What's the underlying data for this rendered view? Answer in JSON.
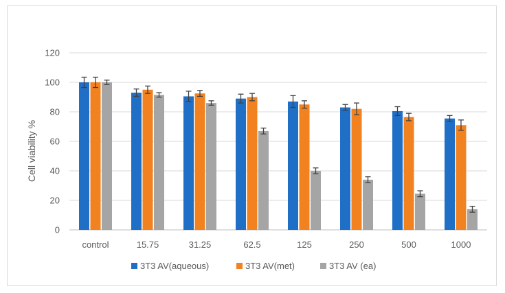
{
  "chart_data": {
    "type": "bar",
    "title": "",
    "xlabel": "",
    "ylabel": "Cell viability %",
    "ylim": [
      0,
      120
    ],
    "yticks": [
      0,
      20,
      40,
      60,
      80,
      100,
      120
    ],
    "grid": true,
    "legend_position": "bottom",
    "categories": [
      "control",
      "15.75",
      "31.25",
      "62.5",
      "125",
      "250",
      "500",
      "1000"
    ],
    "series": [
      {
        "name": "3T3 AV(aqueous)",
        "color": "#1f6fc6",
        "values": [
          100,
          93,
          90.5,
          89,
          87,
          83,
          80.5,
          75.5
        ],
        "errors": [
          3.5,
          2.5,
          3.5,
          3,
          4,
          2,
          3,
          2
        ]
      },
      {
        "name": "3T3 AV(met)",
        "color": "#f28220",
        "values": [
          100,
          95,
          92.5,
          90,
          85,
          82,
          76.5,
          71
        ],
        "errors": [
          3.5,
          2.5,
          2,
          2.5,
          2.5,
          4,
          2.5,
          3.5
        ]
      },
      {
        "name": "3T3 AV (ea)",
        "color": "#a5a5a5",
        "values": [
          100,
          91.5,
          86,
          67,
          40,
          34,
          24.5,
          14
        ],
        "errors": [
          1.5,
          1.5,
          1.5,
          2,
          2,
          2,
          2,
          2
        ]
      }
    ]
  }
}
